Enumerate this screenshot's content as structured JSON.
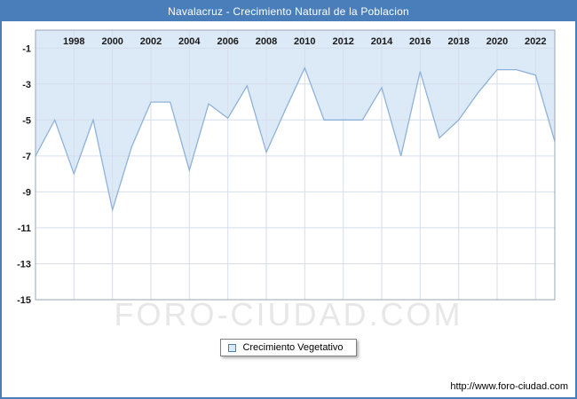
{
  "title_bar": {
    "text": "Navalacruz - Crecimiento Natural de la Poblacion",
    "bg": "#4a7ebb"
  },
  "legend": {
    "label": "Crecimiento Vegetativo"
  },
  "watermark": "FORO-CIUDAD.COM",
  "footer": {
    "url": "http://www.foro-ciudad.com"
  },
  "chart_data": {
    "type": "area",
    "title": "Navalacruz - Crecimiento Natural de la Poblacion",
    "series_name": "Crecimiento Vegetativo",
    "x": [
      1996,
      1997,
      1998,
      1999,
      2000,
      2001,
      2002,
      2003,
      2004,
      2005,
      2006,
      2007,
      2008,
      2009,
      2010,
      2011,
      2012,
      2013,
      2014,
      2015,
      2016,
      2017,
      2018,
      2019,
      2020,
      2021,
      2022,
      2023
    ],
    "values": [
      -7,
      -5,
      -8,
      -5,
      -10,
      -6.5,
      -4,
      -4,
      -7.8,
      -4.1,
      -4.9,
      -3.1,
      -6.8,
      -4.4,
      -2.1,
      -5,
      -5,
      -5,
      -3.2,
      -7,
      -2.3,
      -6,
      -5,
      -3.5,
      -2.2,
      -2.2,
      -2.5,
      -6.2
    ],
    "ylim": [
      -15,
      0
    ],
    "yticks": [
      -1,
      -3,
      -5,
      -7,
      -9,
      -11,
      -13,
      -15
    ],
    "xticks": [
      1998,
      2000,
      2002,
      2004,
      2006,
      2008,
      2010,
      2012,
      2014,
      2016,
      2018,
      2020,
      2022
    ],
    "x_label_position": "top",
    "grid": true,
    "legend_position": "bottom",
    "colors": {
      "line": "#8fb2d8",
      "fill": "#dce9f7",
      "grid": "#d6deea",
      "plot_border": "#9aa5b5",
      "tick_text": "#1a1a1a"
    }
  }
}
